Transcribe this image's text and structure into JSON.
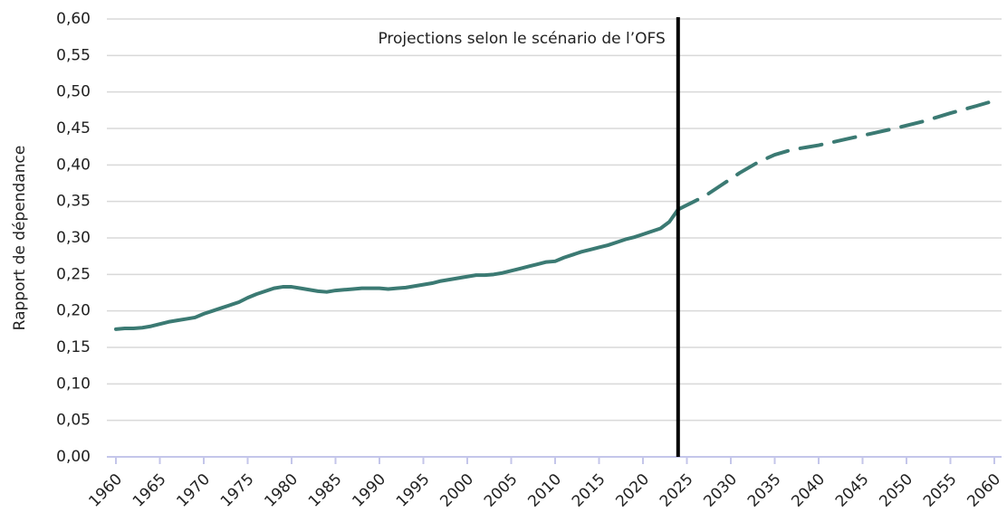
{
  "chart_data": {
    "type": "line",
    "ylabel": "Rapport de dépendance",
    "annotation": "Projections selon le scénario de l’OFS",
    "vline": 2024,
    "xlim": [
      1960,
      2060
    ],
    "xticks": [
      1960,
      1965,
      1970,
      1975,
      1980,
      1985,
      1990,
      1995,
      2000,
      2005,
      2010,
      2015,
      2020,
      2025,
      2030,
      2035,
      2040,
      2045,
      2050,
      2055,
      2060
    ],
    "ylim": [
      0,
      0.6
    ],
    "yticks": [
      {
        "value": 0,
        "label": "0,00"
      },
      {
        "value": 0.05,
        "label": "0,05"
      },
      {
        "value": 0.1,
        "label": "0,10"
      },
      {
        "value": 0.15,
        "label": "0,15"
      },
      {
        "value": 0.2,
        "label": "0,20"
      },
      {
        "value": 0.25,
        "label": "0,25"
      },
      {
        "value": 0.3,
        "label": "0,30"
      },
      {
        "value": 0.35,
        "label": "0,35"
      },
      {
        "value": 0.4,
        "label": "0,40"
      },
      {
        "value": 0.45,
        "label": "0,45"
      },
      {
        "value": 0.5,
        "label": "0,50"
      },
      {
        "value": 0.55,
        "label": "0,55"
      },
      {
        "value": 0.6,
        "label": "0,60"
      }
    ],
    "grid": true,
    "series": [
      {
        "color": "#3b7a73",
        "line_style": "solid",
        "x": [
          1960,
          1961,
          1962,
          1963,
          1964,
          1965,
          1966,
          1967,
          1968,
          1969,
          1970,
          1971,
          1972,
          1973,
          1974,
          1975,
          1976,
          1977,
          1978,
          1979,
          1980,
          1981,
          1982,
          1983,
          1984,
          1985,
          1986,
          1987,
          1988,
          1989,
          1990,
          1991,
          1992,
          1993,
          1994,
          1995,
          1996,
          1997,
          1998,
          1999,
          2000,
          2001,
          2002,
          2003,
          2004,
          2005,
          2006,
          2007,
          2008,
          2009,
          2010,
          2011,
          2012,
          2013,
          2014,
          2015,
          2016,
          2017,
          2018,
          2019,
          2020,
          2021,
          2022,
          2023,
          2024
        ],
        "values": [
          0.175,
          0.176,
          0.176,
          0.177,
          0.179,
          0.182,
          0.185,
          0.187,
          0.189,
          0.191,
          0.196,
          0.2,
          0.204,
          0.208,
          0.212,
          0.218,
          0.223,
          0.227,
          0.231,
          0.233,
          0.233,
          0.231,
          0.229,
          0.227,
          0.226,
          0.228,
          0.229,
          0.23,
          0.231,
          0.231,
          0.231,
          0.23,
          0.231,
          0.232,
          0.234,
          0.236,
          0.238,
          0.241,
          0.243,
          0.245,
          0.247,
          0.249,
          0.249,
          0.25,
          0.252,
          0.255,
          0.258,
          0.261,
          0.264,
          0.267,
          0.268,
          0.273,
          0.277,
          0.281,
          0.284,
          0.287,
          0.29,
          0.294,
          0.298,
          0.301,
          0.305,
          0.309,
          0.313,
          0.322,
          0.339
        ]
      },
      {
        "color": "#3b7a73",
        "line_style": "dashed",
        "x": [
          2024,
          2025,
          2027,
          2029,
          2031,
          2033,
          2035,
          2037,
          2040,
          2043,
          2046,
          2049,
          2052,
          2055,
          2058,
          2060
        ],
        "values": [
          0.339,
          0.345,
          0.357,
          0.373,
          0.389,
          0.403,
          0.414,
          0.421,
          0.427,
          0.435,
          0.443,
          0.451,
          0.46,
          0.471,
          0.481,
          0.488
        ]
      }
    ]
  }
}
